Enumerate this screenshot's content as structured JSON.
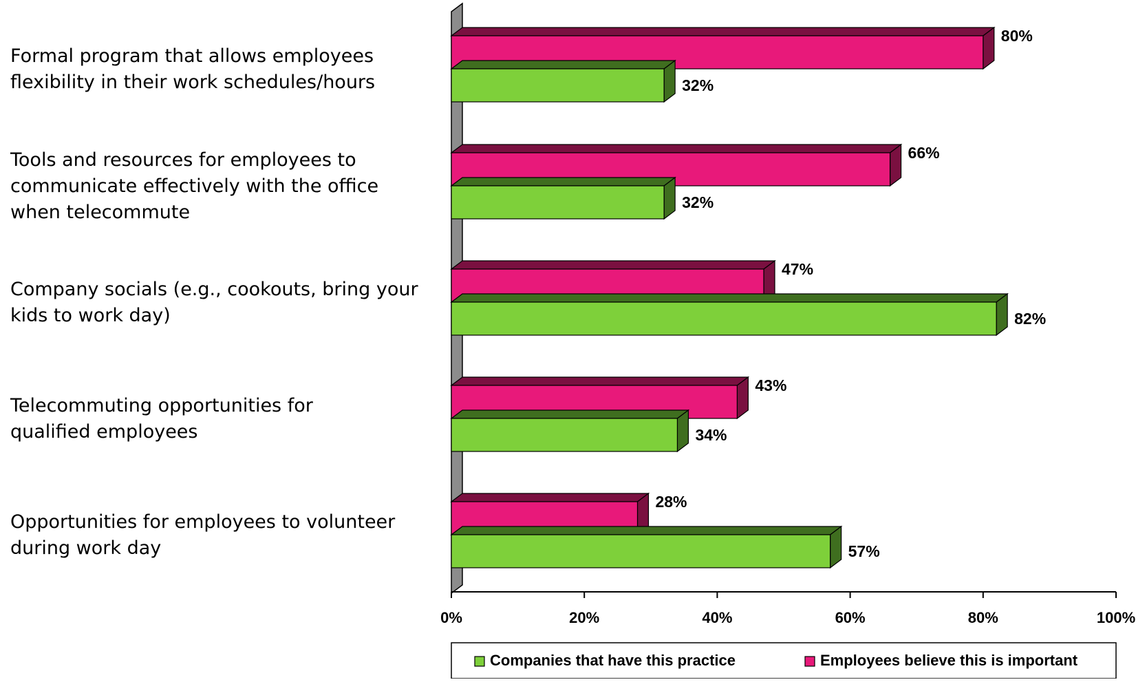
{
  "chart_data": {
    "type": "bar",
    "orientation": "horizontal",
    "style": "3d",
    "categories": [
      [
        "Formal program that allows employees",
        "flexibility in their work schedules/hours"
      ],
      [
        "Tools and resources for employees to",
        "communicate effectively with the office",
        "when telecommute"
      ],
      [
        "Company socials (e.g., cookouts, bring your",
        "kids to work day)"
      ],
      [
        "Telecommuting opportunities for",
        "qualified employees"
      ],
      [
        "Opportunities for employees to volunteer",
        "during work day"
      ]
    ],
    "series": [
      {
        "name": "Employees believe this is important",
        "color": "#e8197a",
        "side_color": "#7a1040",
        "values": [
          80,
          66,
          47,
          43,
          28
        ],
        "labels": [
          "80%",
          "66%",
          "47%",
          "43%",
          "28%"
        ]
      },
      {
        "name": "Companies that have this practice",
        "color": "#7ed03a",
        "side_color": "#3f6e1f",
        "values": [
          32,
          32,
          82,
          34,
          57
        ],
        "labels": [
          "32%",
          "32%",
          "82%",
          "34%",
          "57%"
        ]
      }
    ],
    "xlim": [
      0,
      100
    ],
    "ticks": [
      0,
      20,
      40,
      60,
      80,
      100
    ],
    "tick_labels": [
      "0%",
      "20%",
      "40%",
      "60%",
      "80%",
      "100%"
    ],
    "grid": false,
    "legend": {
      "position": "bottom",
      "order": [
        "Companies that have this practice",
        "Employees believe this is important"
      ]
    },
    "title": "",
    "xlabel": "",
    "ylabel": ""
  }
}
